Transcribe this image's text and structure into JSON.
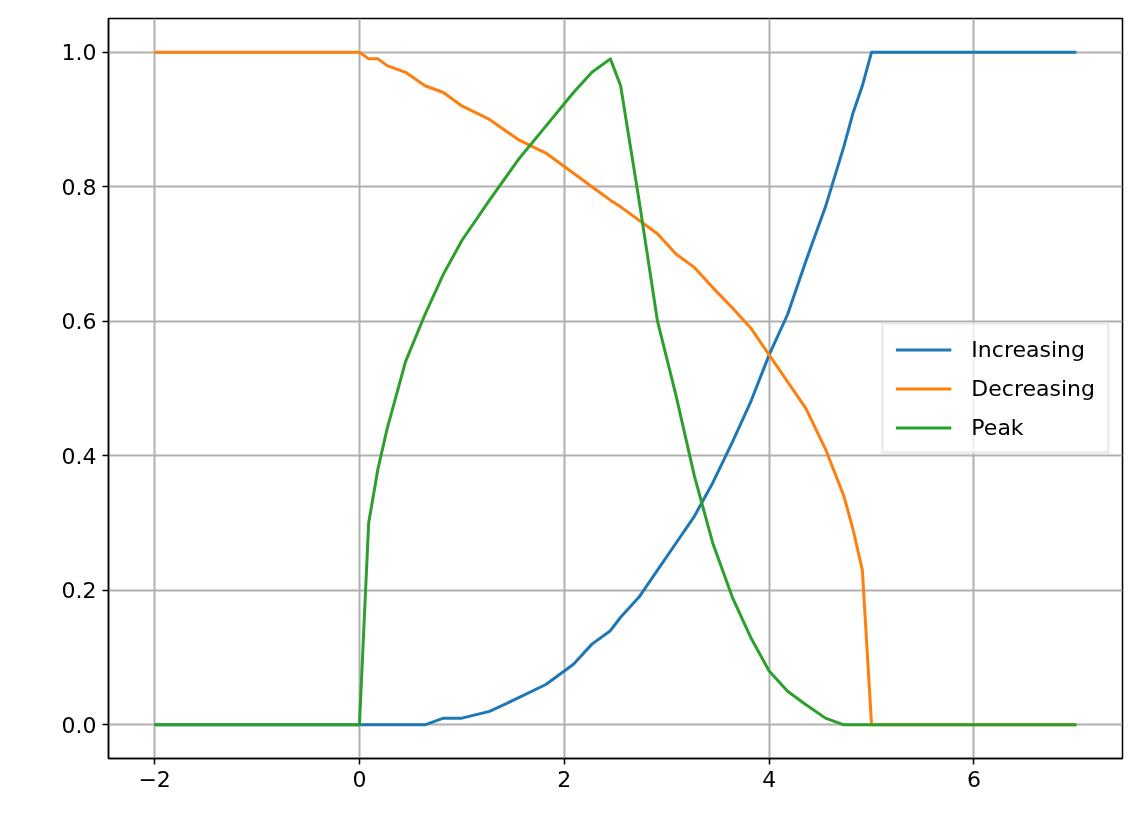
{
  "chart_data": {
    "type": "line",
    "x": [
      -2,
      0,
      0.09,
      0.18,
      0.27,
      0.45,
      0.64,
      0.82,
      1.0,
      1.27,
      1.55,
      1.82,
      2.09,
      2.27,
      2.45,
      2.55,
      2.73,
      2.91,
      3.09,
      3.27,
      3.45,
      3.64,
      3.82,
      4.0,
      4.18,
      4.36,
      4.55,
      4.73,
      4.82,
      4.91,
      5.0,
      7.0
    ],
    "series": [
      {
        "name": "Increasing",
        "color": "#1f77b4",
        "values": [
          0,
          0,
          0,
          0,
          0,
          0,
          0,
          0.01,
          0.01,
          0.02,
          0.04,
          0.06,
          0.09,
          0.12,
          0.14,
          0.16,
          0.19,
          0.23,
          0.27,
          0.31,
          0.36,
          0.42,
          0.48,
          0.55,
          0.61,
          0.69,
          0.77,
          0.86,
          0.91,
          0.95,
          1,
          1
        ]
      },
      {
        "name": "Decreasing",
        "color": "#ff7f0e",
        "values": [
          1,
          1,
          0.99,
          0.99,
          0.98,
          0.97,
          0.95,
          0.94,
          0.92,
          0.9,
          0.87,
          0.85,
          0.82,
          0.8,
          0.78,
          0.77,
          0.75,
          0.73,
          0.7,
          0.68,
          0.65,
          0.62,
          0.59,
          0.55,
          0.51,
          0.47,
          0.41,
          0.34,
          0.29,
          0.23,
          0,
          0
        ]
      },
      {
        "name": "Peak",
        "color": "#2ca02c",
        "values": [
          0,
          0,
          0.3,
          0.38,
          0.44,
          0.54,
          0.61,
          0.67,
          0.72,
          0.78,
          0.84,
          0.89,
          0.94,
          0.97,
          0.99,
          0.95,
          0.78,
          0.6,
          0.49,
          0.37,
          0.27,
          0.19,
          0.13,
          0.08,
          0.05,
          0.03,
          0.01,
          0,
          0,
          0,
          0,
          0
        ]
      }
    ],
    "xlim": [
      -2.45,
      7.45
    ],
    "ylim": [
      -0.05,
      1.05
    ],
    "xticks": [
      {
        "value": -2,
        "label": "−2"
      },
      0,
      2,
      4,
      6
    ],
    "yticks": [
      {
        "value": 0,
        "label": "0.0"
      },
      {
        "value": 0.2,
        "label": "0.2"
      },
      {
        "value": 0.4,
        "label": "0.4"
      },
      {
        "value": 0.6,
        "label": "0.6"
      },
      {
        "value": 0.8,
        "label": "0.8"
      },
      {
        "value": 1.0,
        "label": "1.0"
      }
    ],
    "grid": true,
    "legend": "right",
    "line_style": "solid"
  }
}
